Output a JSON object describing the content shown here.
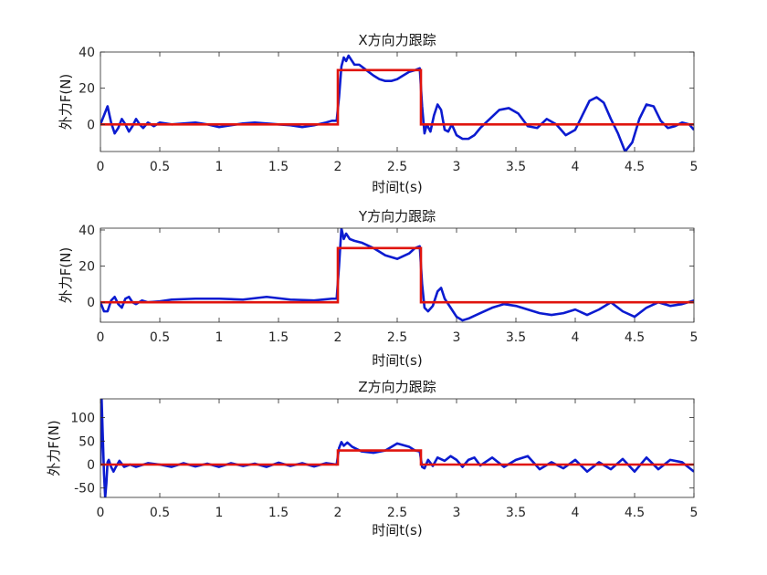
{
  "colors": {
    "actual": "#0b1bd0",
    "reference": "#e0140e",
    "axes": "#262626"
  },
  "chart_data": [
    {
      "type": "line",
      "title": "X方向力跟踪",
      "xlabel": "时间t(s)",
      "ylabel": "外力F(N)",
      "xlim": [
        0,
        5
      ],
      "ylim": [
        -15,
        40
      ],
      "xticks": [
        0,
        0.5,
        1,
        1.5,
        2,
        2.5,
        3,
        3.5,
        4,
        4.5,
        5
      ],
      "xtick_labels": [
        "0",
        "0.5",
        "1",
        "1.5",
        "2",
        "2.5",
        "3",
        "3.5",
        "4",
        "4.5",
        "5"
      ],
      "yticks": [
        0,
        20,
        40
      ],
      "ytick_labels": [
        "0",
        "20",
        "40"
      ],
      "grid": false,
      "series": [
        {
          "role": "reference",
          "x": [
            0,
            2.0,
            2.0,
            2.7,
            2.7,
            5.0
          ],
          "y": [
            0,
            0,
            30,
            30,
            0,
            0
          ]
        },
        {
          "role": "actual",
          "x": [
            0,
            0.03,
            0.06,
            0.09,
            0.12,
            0.15,
            0.18,
            0.21,
            0.24,
            0.27,
            0.3,
            0.33,
            0.36,
            0.4,
            0.45,
            0.5,
            0.6,
            0.7,
            0.8,
            0.9,
            1.0,
            1.1,
            1.2,
            1.3,
            1.4,
            1.5,
            1.6,
            1.7,
            1.8,
            1.9,
            1.95,
            1.99,
            2.01,
            2.03,
            2.05,
            2.07,
            2.09,
            2.11,
            2.14,
            2.18,
            2.22,
            2.26,
            2.3,
            2.35,
            2.4,
            2.45,
            2.5,
            2.55,
            2.6,
            2.65,
            2.69,
            2.71,
            2.73,
            2.75,
            2.78,
            2.81,
            2.84,
            2.87,
            2.9,
            2.93,
            2.96,
            3.0,
            3.05,
            3.1,
            3.15,
            3.2,
            3.28,
            3.36,
            3.44,
            3.52,
            3.6,
            3.68,
            3.76,
            3.84,
            3.92,
            4.0,
            4.06,
            4.12,
            4.18,
            4.24,
            4.3,
            4.36,
            4.42,
            4.48,
            4.54,
            4.6,
            4.66,
            4.72,
            4.78,
            4.84,
            4.9,
            4.96,
            5.0
          ],
          "y": [
            0,
            5,
            10,
            1,
            -5,
            -2,
            3,
            0,
            -4,
            -1,
            3,
            0,
            -2,
            1,
            -1,
            1,
            0,
            0.5,
            1,
            0,
            -1.5,
            -0.5,
            0.5,
            1,
            0.5,
            0,
            -0.5,
            -1.5,
            -0.5,
            1,
            2,
            2,
            15,
            32,
            37,
            35,
            38,
            36,
            33,
            33,
            31,
            29,
            27,
            25,
            24,
            24,
            25,
            27,
            29,
            30,
            31,
            10,
            -5,
            0,
            -4,
            5,
            11,
            8,
            -3,
            -4,
            0,
            -6,
            -8,
            -8,
            -6,
            -2,
            3,
            8,
            9,
            6,
            -1,
            -2,
            3,
            0,
            -6,
            -3,
            5,
            13,
            15,
            12,
            3,
            -5,
            -15,
            -10,
            3,
            11,
            10,
            2,
            -2,
            -1,
            1,
            0,
            -3
          ]
        }
      ]
    },
    {
      "type": "line",
      "title": "Y方向力跟踪",
      "xlabel": "时间t(s)",
      "ylabel": "外力F(N)",
      "xlim": [
        0,
        5
      ],
      "ylim": [
        -11,
        41
      ],
      "xticks": [
        0,
        0.5,
        1,
        1.5,
        2,
        2.5,
        3,
        3.5,
        4,
        4.5,
        5
      ],
      "xtick_labels": [
        "0",
        "0.5",
        "1",
        "1.5",
        "2",
        "2.5",
        "3",
        "3.5",
        "4",
        "4.5",
        "5"
      ],
      "yticks": [
        0,
        20,
        40
      ],
      "ytick_labels": [
        "0",
        "20",
        "40"
      ],
      "grid": false,
      "series": [
        {
          "role": "reference",
          "x": [
            0,
            2.0,
            2.0,
            2.7,
            2.7,
            5.0
          ],
          "y": [
            0,
            0,
            30,
            30,
            0,
            0
          ]
        },
        {
          "role": "actual",
          "x": [
            0,
            0.03,
            0.06,
            0.09,
            0.12,
            0.15,
            0.18,
            0.21,
            0.24,
            0.27,
            0.3,
            0.35,
            0.4,
            0.5,
            0.6,
            0.8,
            1.0,
            1.2,
            1.4,
            1.6,
            1.8,
            1.95,
            1.99,
            2.01,
            2.03,
            2.05,
            2.07,
            2.1,
            2.14,
            2.2,
            2.3,
            2.4,
            2.5,
            2.6,
            2.65,
            2.69,
            2.71,
            2.73,
            2.76,
            2.8,
            2.84,
            2.87,
            2.9,
            2.95,
            3.0,
            3.05,
            3.1,
            3.2,
            3.3,
            3.4,
            3.5,
            3.6,
            3.7,
            3.8,
            3.9,
            4.0,
            4.1,
            4.2,
            4.3,
            4.4,
            4.5,
            4.6,
            4.7,
            4.8,
            4.9,
            5.0
          ],
          "y": [
            0,
            -5,
            -5,
            1,
            3,
            -1,
            -3,
            2,
            3,
            0,
            -1,
            1,
            0,
            0.5,
            1.5,
            2,
            2,
            1.5,
            3,
            1.5,
            1,
            2,
            2,
            20,
            41,
            35,
            38,
            35,
            34,
            33,
            30,
            26,
            24,
            27,
            30,
            31,
            10,
            -3,
            -5,
            -2,
            6,
            8,
            2,
            -3,
            -8,
            -10,
            -9,
            -6,
            -3,
            -1,
            -2,
            -4,
            -6,
            -7,
            -6,
            -4,
            -7,
            -4,
            0,
            -5,
            -8,
            -3,
            0,
            -2,
            -1,
            1
          ]
        }
      ]
    },
    {
      "type": "line",
      "title": "Z方向力跟踪",
      "xlabel": "时间t(s)",
      "ylabel": "外力F(N)",
      "xlim": [
        0,
        5
      ],
      "ylim": [
        -70,
        140
      ],
      "xticks": [
        0,
        0.5,
        1,
        1.5,
        2,
        2.5,
        3,
        3.5,
        4,
        4.5,
        5
      ],
      "xtick_labels": [
        "0",
        "0.5",
        "1",
        "1.5",
        "2",
        "2.5",
        "3",
        "3.5",
        "4",
        "4.5",
        "5"
      ],
      "yticks": [
        -50,
        0,
        50,
        100
      ],
      "ytick_labels": [
        "-50",
        "0",
        "50",
        "100"
      ],
      "grid": false,
      "series": [
        {
          "role": "reference",
          "x": [
            0,
            2.0,
            2.0,
            2.7,
            2.7,
            5.0
          ],
          "y": [
            0,
            0,
            30,
            30,
            0,
            0
          ]
        },
        {
          "role": "actual",
          "x": [
            0,
            0.01,
            0.02,
            0.03,
            0.04,
            0.05,
            0.06,
            0.07,
            0.09,
            0.11,
            0.13,
            0.16,
            0.2,
            0.25,
            0.3,
            0.4,
            0.5,
            0.6,
            0.7,
            0.8,
            0.9,
            1.0,
            1.1,
            1.2,
            1.3,
            1.4,
            1.5,
            1.6,
            1.7,
            1.8,
            1.9,
            1.99,
            2.01,
            2.03,
            2.05,
            2.08,
            2.12,
            2.16,
            2.2,
            2.3,
            2.4,
            2.5,
            2.6,
            2.65,
            2.69,
            2.71,
            2.73,
            2.76,
            2.8,
            2.84,
            2.9,
            2.95,
            3.0,
            3.05,
            3.1,
            3.15,
            3.2,
            3.3,
            3.4,
            3.5,
            3.6,
            3.7,
            3.8,
            3.9,
            4.0,
            4.1,
            4.2,
            4.3,
            4.4,
            4.5,
            4.6,
            4.7,
            4.8,
            4.9,
            5.0
          ],
          "y": [
            0,
            140,
            60,
            -20,
            -70,
            -40,
            5,
            10,
            -5,
            -15,
            -5,
            8,
            -5,
            0,
            -5,
            3,
            0,
            -5,
            3,
            -4,
            2,
            -5,
            3,
            -3,
            2,
            -5,
            4,
            -3,
            3,
            -4,
            3,
            0,
            35,
            48,
            40,
            47,
            38,
            33,
            28,
            25,
            30,
            45,
            38,
            30,
            28,
            -5,
            -8,
            10,
            -3,
            15,
            8,
            18,
            10,
            -5,
            10,
            15,
            -2,
            15,
            -5,
            10,
            18,
            -10,
            5,
            -8,
            10,
            -15,
            5,
            -10,
            12,
            -15,
            15,
            -10,
            10,
            5,
            -15
          ]
        }
      ]
    }
  ]
}
